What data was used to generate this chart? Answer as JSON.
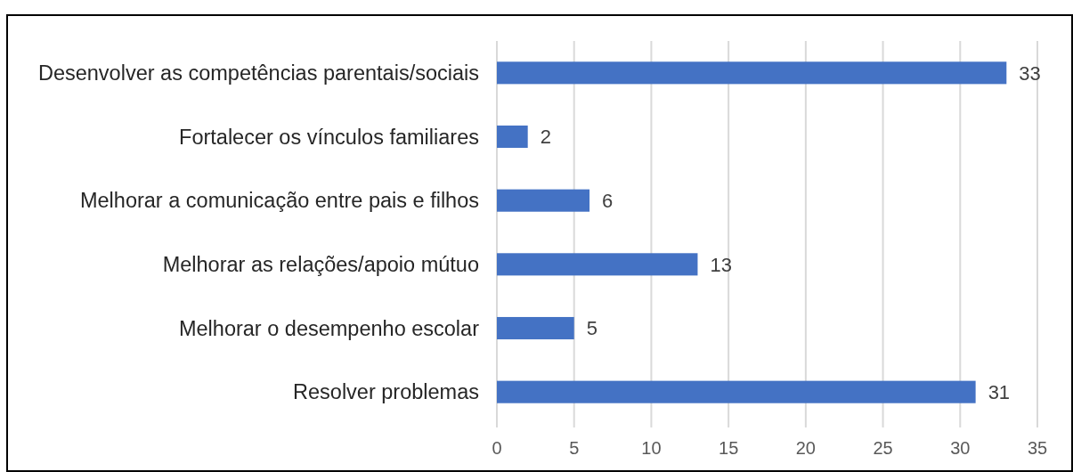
{
  "chart_data": {
    "type": "bar",
    "orientation": "horizontal",
    "categories": [
      "Desenvolver as competências parentais/sociais",
      "Fortalecer os vínculos familiares",
      "Melhorar a comunicação entre pais e filhos",
      "Melhorar as relações/apoio mútuo",
      "Melhorar o desempenho escolar",
      "Resolver problemas"
    ],
    "values": [
      33,
      2,
      6,
      13,
      5,
      31
    ],
    "color": "#4472c4",
    "xlim": [
      0,
      35
    ],
    "xticks": [
      0,
      5,
      10,
      15,
      20,
      25,
      30,
      35
    ],
    "grid": "x",
    "data_labels": true
  }
}
